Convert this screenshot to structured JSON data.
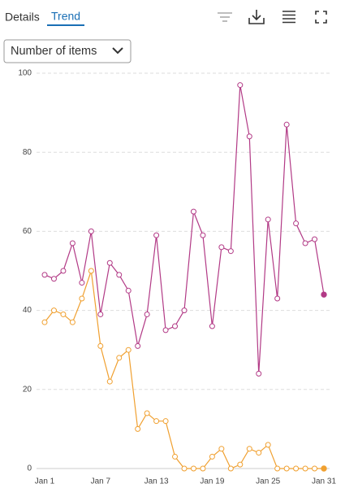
{
  "tabs": [
    "Details",
    "Trend"
  ],
  "dropdown": {
    "label": "Number of items"
  },
  "chart_data": {
    "type": "line",
    "categories": [
      "Jan 1",
      null,
      null,
      null,
      null,
      null,
      "Jan 7",
      null,
      null,
      null,
      null,
      null,
      "Jan 13",
      null,
      null,
      null,
      null,
      null,
      "Jan 19",
      null,
      null,
      null,
      null,
      null,
      "Jan 25",
      null,
      null,
      null,
      null,
      null,
      "Jan 31"
    ],
    "series": [
      {
        "color": "#b23a86",
        "values": [
          49,
          48,
          50,
          57,
          47,
          60,
          39,
          52,
          49,
          45,
          31,
          39,
          59,
          35,
          36,
          40,
          65,
          59,
          36,
          56,
          55,
          97,
          84,
          24,
          63,
          43,
          87,
          62,
          57,
          58,
          44
        ]
      },
      {
        "color": "#f0a030",
        "values": [
          37,
          40,
          39,
          37,
          43,
          50,
          31,
          22,
          28,
          30,
          10,
          14,
          12,
          12,
          3,
          0,
          0,
          0,
          3,
          5,
          0,
          1,
          5,
          4,
          6,
          0,
          0,
          0,
          0,
          0,
          0
        ]
      }
    ],
    "ylim": [
      0,
      100
    ],
    "yticks": [
      0,
      20,
      40,
      60,
      80,
      100
    ],
    "grid": true
  }
}
